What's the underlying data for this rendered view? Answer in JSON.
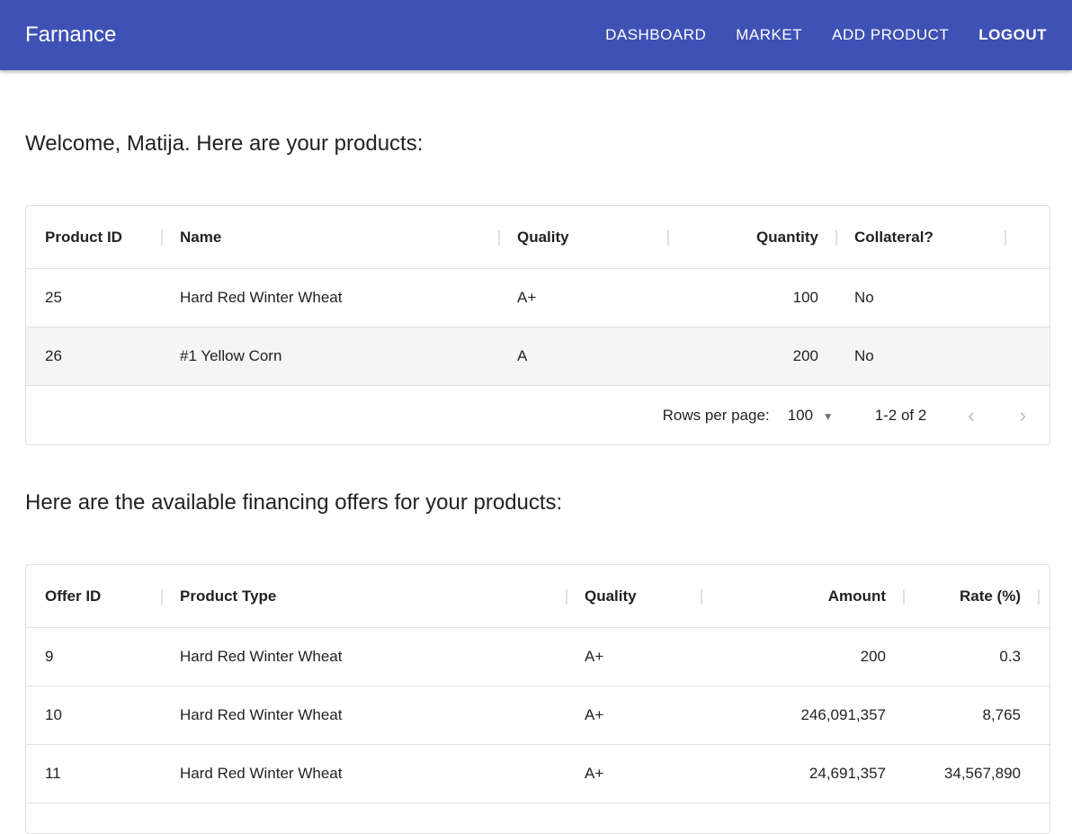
{
  "nav": {
    "brand": "Farnance",
    "links": [
      "Dashboard",
      "Market",
      "Add Product",
      "Logout"
    ]
  },
  "products": {
    "heading": "Welcome, Matija. Here are your products:",
    "columns": [
      "Product ID",
      "Name",
      "Quality",
      "Quantity",
      "Collateral?"
    ],
    "rows": [
      [
        "25",
        "Hard Red Winter Wheat",
        "A+",
        "100",
        "No"
      ],
      [
        "26",
        "#1 Yellow Corn",
        "A",
        "200",
        "No"
      ]
    ],
    "pagination": {
      "rows_per_page_label": "Rows per page:",
      "rows_per_page": "100",
      "range": "1-2 of 2"
    }
  },
  "offers": {
    "heading": "Here are the available financing offers for your products:",
    "columns": [
      "Offer ID",
      "Product Type",
      "Quality",
      "Amount",
      "Rate (%)"
    ],
    "rows": [
      [
        "9",
        "Hard Red Winter Wheat",
        "A+",
        "200",
        "0.3"
      ],
      [
        "10",
        "Hard Red Winter Wheat",
        "A+",
        "246,091,357",
        "8,765"
      ],
      [
        "11",
        "Hard Red Winter Wheat",
        "A+",
        "24,691,357",
        "34,567,890"
      ]
    ]
  },
  "colors": {
    "primary": "#3f51b5"
  }
}
